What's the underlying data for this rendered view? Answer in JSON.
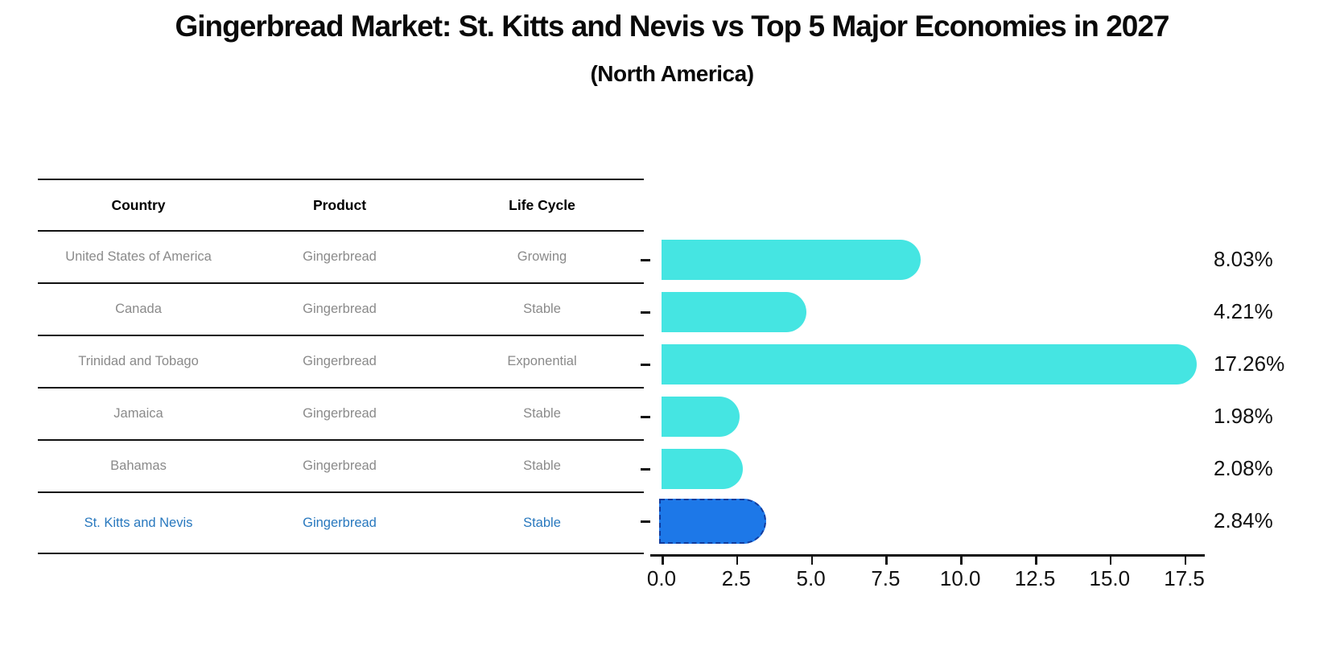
{
  "header": {
    "title": "Gingerbread Market: St. Kitts and Nevis vs Top 5 Major Economies in 2027",
    "subtitle": "(North America)"
  },
  "table": {
    "columns": [
      "Country",
      "Product",
      "Life Cycle"
    ],
    "rows": [
      {
        "country": "United States of America",
        "product": "Gingerbread",
        "life_cycle": "Growing"
      },
      {
        "country": "Canada",
        "product": "Gingerbread",
        "life_cycle": "Stable"
      },
      {
        "country": "Trinidad and Tobago",
        "product": "Gingerbread",
        "life_cycle": "Exponential"
      },
      {
        "country": "Jamaica",
        "product": "Gingerbread",
        "life_cycle": "Stable"
      },
      {
        "country": "Bahamas",
        "product": "Gingerbread",
        "life_cycle": "Stable"
      },
      {
        "country": "St. Kitts and Nevis",
        "product": "Gingerbread",
        "life_cycle": "Stable"
      }
    ],
    "highlight_row_index": 5
  },
  "chart_data": {
    "type": "bar",
    "orientation": "horizontal",
    "title": "Gingerbread Market: St. Kitts and Nevis vs Top 5 Major Economies in 2027",
    "subtitle": "(North America)",
    "categories": [
      "United States of America",
      "Canada",
      "Trinidad and Tobago",
      "Jamaica",
      "Bahamas",
      "St. Kitts and Nevis"
    ],
    "values": [
      8.03,
      4.21,
      17.26,
      1.98,
      2.08,
      2.84
    ],
    "value_labels": [
      "8.03%",
      "4.21%",
      "17.26%",
      "1.98%",
      "2.08%",
      "2.84%"
    ],
    "x_tick_labels": [
      "0.0",
      "2.5",
      "5.0",
      "7.5",
      "10.0",
      "12.5",
      "15.0",
      "17.5"
    ],
    "x_tick_values": [
      0,
      2.5,
      5,
      7.5,
      10,
      12.5,
      15,
      17.5
    ],
    "xlim": [
      0,
      18.2
    ],
    "grid": false,
    "legend": null,
    "highlight_index": 5
  },
  "colors": {
    "bar": "#45e5e2",
    "highlight_bar": "#1d78e8",
    "highlight_border": "#123c9e",
    "highlight_text": "#2878be",
    "table_text": "#8a8a8a",
    "axis": "#111111"
  }
}
